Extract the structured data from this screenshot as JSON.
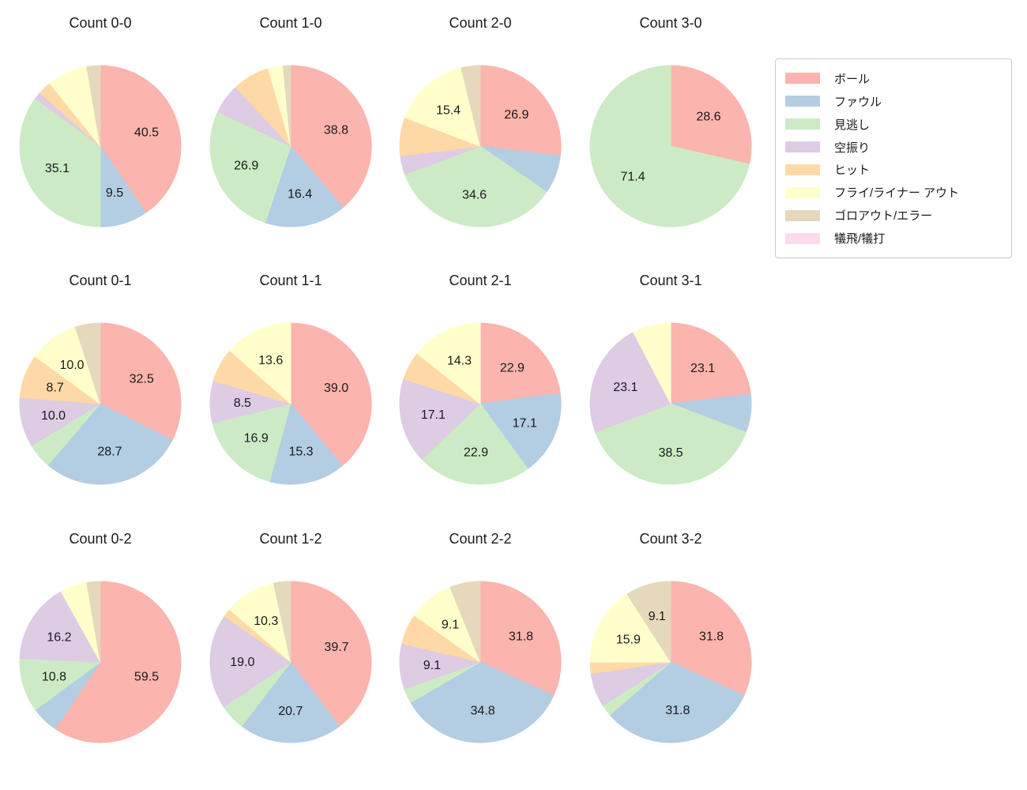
{
  "figure": {
    "background": "#ffffff",
    "text_color": "#1a1a1a"
  },
  "legend": {
    "position": "top-right",
    "items": [
      {
        "key": "ball",
        "label": "ボール",
        "color": "#fbb4ae"
      },
      {
        "key": "foul",
        "label": "ファウル",
        "color": "#b3cde3"
      },
      {
        "key": "called-strike",
        "label": "見逃し",
        "color": "#ccebc5"
      },
      {
        "key": "swinging-strike",
        "label": "空振り",
        "color": "#decbe4"
      },
      {
        "key": "hit",
        "label": "ヒット",
        "color": "#fed9a6"
      },
      {
        "key": "fly-liner-out",
        "label": "フライ/ライナー アウト",
        "color": "#ffffcc"
      },
      {
        "key": "groundout-error",
        "label": "ゴロアウト/エラー",
        "color": "#e5d8bd"
      },
      {
        "key": "sacrifice",
        "label": "犠飛/犠打",
        "color": "#fddaec"
      }
    ]
  },
  "chart_data": [
    {
      "type": "pie",
      "title": "Count 0-0",
      "start_angle_deg": 90,
      "direction": "clockwise",
      "slices": [
        {
          "category": "ボール",
          "value": 40.5,
          "label": "40.5"
        },
        {
          "category": "ファウル",
          "value": 9.5,
          "label": "9.5"
        },
        {
          "category": "見逃し",
          "value": 35.1,
          "label": "35.1"
        },
        {
          "category": "空振り",
          "value": 1.4,
          "label": ""
        },
        {
          "category": "ヒット",
          "value": 2.7,
          "label": ""
        },
        {
          "category": "フライ/ライナー アウト",
          "value": 8.1,
          "label": ""
        },
        {
          "category": "ゴロアウト/エラー",
          "value": 2.7,
          "label": ""
        }
      ]
    },
    {
      "type": "pie",
      "title": "Count 1-0",
      "start_angle_deg": 90,
      "direction": "clockwise",
      "slices": [
        {
          "category": "ボール",
          "value": 38.8,
          "label": "38.8"
        },
        {
          "category": "ファウル",
          "value": 16.4,
          "label": "16.4"
        },
        {
          "category": "見逃し",
          "value": 26.9,
          "label": "26.9"
        },
        {
          "category": "空振り",
          "value": 6.0,
          "label": ""
        },
        {
          "category": "ヒット",
          "value": 7.5,
          "label": ""
        },
        {
          "category": "フライ/ライナー アウト",
          "value": 3.0,
          "label": ""
        },
        {
          "category": "ゴロアウト/エラー",
          "value": 1.5,
          "label": ""
        }
      ]
    },
    {
      "type": "pie",
      "title": "Count 2-0",
      "start_angle_deg": 90,
      "direction": "clockwise",
      "slices": [
        {
          "category": "ボール",
          "value": 26.9,
          "label": "26.9"
        },
        {
          "category": "ファウル",
          "value": 7.7,
          "label": ""
        },
        {
          "category": "見逃し",
          "value": 34.6,
          "label": "34.6"
        },
        {
          "category": "空振り",
          "value": 3.8,
          "label": ""
        },
        {
          "category": "ヒット",
          "value": 7.7,
          "label": ""
        },
        {
          "category": "フライ/ライナー アウト",
          "value": 15.4,
          "label": "15.4"
        },
        {
          "category": "ゴロアウト/エラー",
          "value": 3.8,
          "label": ""
        }
      ]
    },
    {
      "type": "pie",
      "title": "Count 3-0",
      "start_angle_deg": 90,
      "direction": "clockwise",
      "slices": [
        {
          "category": "ボール",
          "value": 28.6,
          "label": "28.6"
        },
        {
          "category": "見逃し",
          "value": 71.4,
          "label": "71.4"
        }
      ]
    },
    {
      "type": "pie",
      "title": "Count 0-1",
      "start_angle_deg": 90,
      "direction": "clockwise",
      "slices": [
        {
          "category": "ボール",
          "value": 32.5,
          "label": "32.5"
        },
        {
          "category": "ファウル",
          "value": 28.7,
          "label": "28.7"
        },
        {
          "category": "見逃し",
          "value": 5.0,
          "label": ""
        },
        {
          "category": "空振り",
          "value": 10.0,
          "label": "10.0"
        },
        {
          "category": "ヒット",
          "value": 8.7,
          "label": "8.7"
        },
        {
          "category": "フライ/ライナー アウト",
          "value": 10.0,
          "label": "10.0"
        },
        {
          "category": "ゴロアウト/エラー",
          "value": 5.0,
          "label": ""
        }
      ]
    },
    {
      "type": "pie",
      "title": "Count 1-1",
      "start_angle_deg": 90,
      "direction": "clockwise",
      "slices": [
        {
          "category": "ボール",
          "value": 39.0,
          "label": "39.0"
        },
        {
          "category": "ファウル",
          "value": 15.3,
          "label": "15.3"
        },
        {
          "category": "見逃し",
          "value": 16.9,
          "label": "16.9"
        },
        {
          "category": "空振り",
          "value": 8.5,
          "label": "8.5"
        },
        {
          "category": "ヒット",
          "value": 6.8,
          "label": ""
        },
        {
          "category": "フライ/ライナー アウト",
          "value": 13.6,
          "label": "13.6"
        }
      ]
    },
    {
      "type": "pie",
      "title": "Count 2-1",
      "start_angle_deg": 90,
      "direction": "clockwise",
      "slices": [
        {
          "category": "ボール",
          "value": 22.9,
          "label": "22.9"
        },
        {
          "category": "ファウル",
          "value": 17.1,
          "label": "17.1"
        },
        {
          "category": "見逃し",
          "value": 22.9,
          "label": "22.9"
        },
        {
          "category": "空振り",
          "value": 17.1,
          "label": "17.1"
        },
        {
          "category": "ヒット",
          "value": 5.7,
          "label": ""
        },
        {
          "category": "フライ/ライナー アウト",
          "value": 14.3,
          "label": "14.3"
        }
      ]
    },
    {
      "type": "pie",
      "title": "Count 3-1",
      "start_angle_deg": 90,
      "direction": "clockwise",
      "slices": [
        {
          "category": "ボール",
          "value": 23.1,
          "label": "23.1"
        },
        {
          "category": "ファウル",
          "value": 7.7,
          "label": ""
        },
        {
          "category": "見逃し",
          "value": 38.5,
          "label": "38.5"
        },
        {
          "category": "空振り",
          "value": 23.1,
          "label": "23.1"
        },
        {
          "category": "フライ/ライナー アウト",
          "value": 7.7,
          "label": ""
        }
      ]
    },
    {
      "type": "pie",
      "title": "Count 0-2",
      "start_angle_deg": 90,
      "direction": "clockwise",
      "slices": [
        {
          "category": "ボール",
          "value": 59.5,
          "label": "59.5"
        },
        {
          "category": "ファウル",
          "value": 5.4,
          "label": ""
        },
        {
          "category": "見逃し",
          "value": 10.8,
          "label": "10.8"
        },
        {
          "category": "空振り",
          "value": 16.2,
          "label": "16.2"
        },
        {
          "category": "フライ/ライナー アウト",
          "value": 5.4,
          "label": ""
        },
        {
          "category": "ゴロアウト/エラー",
          "value": 2.7,
          "label": ""
        }
      ]
    },
    {
      "type": "pie",
      "title": "Count 1-2",
      "start_angle_deg": 90,
      "direction": "clockwise",
      "slices": [
        {
          "category": "ボール",
          "value": 39.7,
          "label": "39.7"
        },
        {
          "category": "ファウル",
          "value": 20.7,
          "label": "20.7"
        },
        {
          "category": "見逃し",
          "value": 5.2,
          "label": ""
        },
        {
          "category": "空振り",
          "value": 19.0,
          "label": "19.0"
        },
        {
          "category": "ヒット",
          "value": 1.7,
          "label": ""
        },
        {
          "category": "フライ/ライナー アウト",
          "value": 10.3,
          "label": "10.3"
        },
        {
          "category": "ゴロアウト/エラー",
          "value": 3.4,
          "label": ""
        }
      ]
    },
    {
      "type": "pie",
      "title": "Count 2-2",
      "start_angle_deg": 90,
      "direction": "clockwise",
      "slices": [
        {
          "category": "ボール",
          "value": 31.8,
          "label": "31.8"
        },
        {
          "category": "ファウル",
          "value": 34.8,
          "label": "34.8"
        },
        {
          "category": "見逃し",
          "value": 3.0,
          "label": ""
        },
        {
          "category": "空振り",
          "value": 9.1,
          "label": "9.1"
        },
        {
          "category": "ヒット",
          "value": 6.1,
          "label": ""
        },
        {
          "category": "フライ/ライナー アウト",
          "value": 9.1,
          "label": "9.1"
        },
        {
          "category": "ゴロアウト/エラー",
          "value": 6.1,
          "label": ""
        }
      ]
    },
    {
      "type": "pie",
      "title": "Count 3-2",
      "start_angle_deg": 90,
      "direction": "clockwise",
      "slices": [
        {
          "category": "ボール",
          "value": 31.8,
          "label": "31.8"
        },
        {
          "category": "ファウル",
          "value": 31.8,
          "label": "31.8"
        },
        {
          "category": "見逃し",
          "value": 2.3,
          "label": ""
        },
        {
          "category": "空振り",
          "value": 6.8,
          "label": ""
        },
        {
          "category": "ヒット",
          "value": 2.3,
          "label": ""
        },
        {
          "category": "フライ/ライナー アウト",
          "value": 15.9,
          "label": "15.9"
        },
        {
          "category": "ゴロアウト/エラー",
          "value": 9.1,
          "label": "9.1"
        }
      ]
    }
  ]
}
